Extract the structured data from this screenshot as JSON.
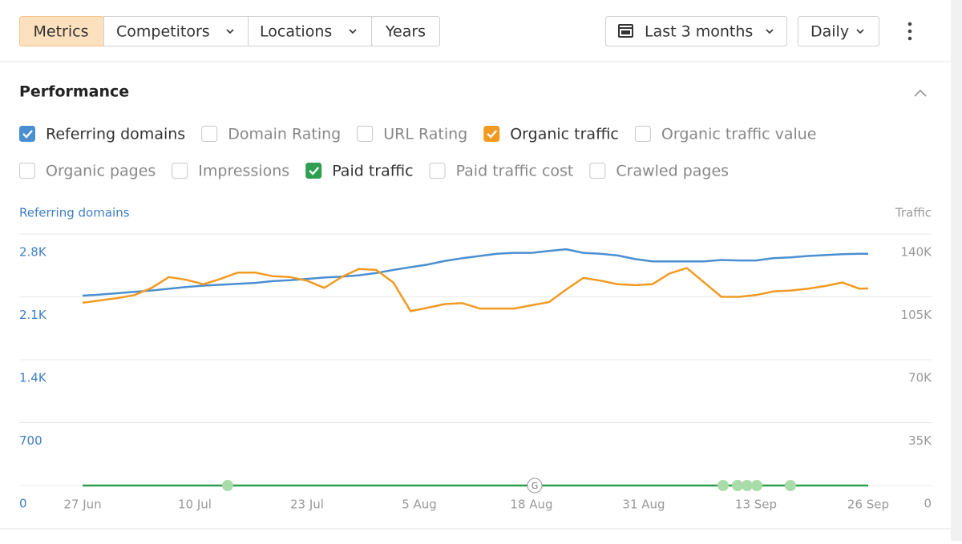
{
  "toolbar": {
    "tabs": [
      "Metrics",
      "Competitors",
      "Locations",
      "Years"
    ],
    "date_range": "Last 3 months",
    "interval": "Daily"
  },
  "section_title": "Performance",
  "chart_data": {
    "type": "line",
    "y_label": "Referring domains",
    "y2_label": "Traffic",
    "annotation_label": "G",
    "legend": [
      [
        {
          "checked": true
        },
        {
          "checked": false,
          "label": "Domain Rating"
        },
        {
          "checked": false,
          "label": "URL Rating"
        },
        {
          "checked": true
        },
        {
          "checked": false,
          "label": "Organic traffic value"
        }
      ],
      [
        {
          "checked": false,
          "label": "Organic pages"
        },
        {
          "checked": false,
          "label": "Impressions"
        },
        {
          "checked": true
        },
        {
          "checked": false,
          "label": "Paid traffic cost"
        },
        {
          "checked": false,
          "label": "Crawled pages"
        }
      ]
    ],
    "x": [
      "27 Jun",
      "29 Jun",
      "1 Jul",
      "3 Jul",
      "5 Jul",
      "7 Jul",
      "9 Jul",
      "11 Jul",
      "13 Jul",
      "15 Jul",
      "17 Jul",
      "19 Jul",
      "21 Jul",
      "23 Jul",
      "25 Jul",
      "27 Jul",
      "29 Jul",
      "31 Jul",
      "2 Aug",
      "4 Aug",
      "6 Aug",
      "8 Aug",
      "10 Aug",
      "12 Aug",
      "14 Aug",
      "16 Aug",
      "18 Aug",
      "20 Aug",
      "22 Aug",
      "24 Aug",
      "26 Aug",
      "28 Aug",
      "30 Aug",
      "1 Sep",
      "3 Sep",
      "5 Sep",
      "7 Sep",
      "9 Sep",
      "11 Sep",
      "13 Sep",
      "15 Sep",
      "17 Sep",
      "19 Sep",
      "21 Sep",
      "23 Sep",
      "25 Sep",
      "26 Sep"
    ],
    "xticks": [
      "27 Jun",
      "10 Jul",
      "23 Jul",
      "5 Aug",
      "18 Aug",
      "31 Aug",
      "13 Sep",
      "26 Sep"
    ],
    "ylim": [
      0,
      2800
    ],
    "yticks": [
      0,
      700,
      {
        "value": 1400,
        "label": "1.4K"
      },
      {
        "value": 2100,
        "label": "2.1K"
      },
      {
        "value": 2800,
        "label": "2.8K"
      }
    ],
    "y2lim": [
      0,
      140000
    ],
    "y2ticks": [
      0,
      {
        "value": 35000,
        "label": "35K"
      },
      {
        "value": 70000,
        "label": "70K"
      },
      {
        "value": 105000,
        "label": "105K"
      },
      {
        "value": 140000,
        "label": "140K"
      }
    ],
    "grid": true,
    "series": [
      {
        "name": "Referring domains",
        "color": "#4a8fd1",
        "axis": "y",
        "values": [
          2113,
          2125,
          2140,
          2155,
          2170,
          2190,
          2210,
          2225,
          2235,
          2245,
          2255,
          2275,
          2285,
          2300,
          2315,
          2325,
          2340,
          2365,
          2400,
          2430,
          2460,
          2500,
          2530,
          2555,
          2580,
          2590,
          2590,
          2610,
          2630,
          2590,
          2580,
          2560,
          2520,
          2495,
          2495,
          2495,
          2495,
          2510,
          2505,
          2505,
          2530,
          2540,
          2555,
          2565,
          2575,
          2580,
          2580
        ]
      },
      {
        "name": "Organic traffic",
        "color": "#f19a22",
        "axis": "y2",
        "values": [
          101700,
          103000,
          104300,
          106000,
          110000,
          116000,
          114500,
          112000,
          115000,
          118500,
          118500,
          116500,
          116000,
          114000,
          110000,
          116000,
          120500,
          120000,
          113000,
          97000,
          99000,
          101000,
          101500,
          98500,
          98500,
          98500,
          100300,
          102000,
          109000,
          115500,
          114000,
          112000,
          111500,
          112000,
          118000,
          121000,
          113000,
          105000,
          105000,
          106000,
          108000,
          108500,
          109500,
          111000,
          113000,
          109500,
          109700
        ]
      },
      {
        "name": "Paid traffic",
        "color": "#2e9e4f",
        "axis": "y2",
        "values": [
          0,
          0,
          0,
          0,
          0,
          0,
          0,
          0,
          0,
          0,
          0,
          0,
          0,
          0,
          0,
          0,
          0,
          0,
          0,
          0,
          0,
          0,
          0,
          0,
          0,
          0,
          0,
          0,
          0,
          0,
          0,
          0,
          0,
          0,
          0,
          0,
          0,
          0,
          0,
          0,
          0,
          0,
          0,
          0,
          0,
          0,
          0
        ]
      }
    ]
  }
}
